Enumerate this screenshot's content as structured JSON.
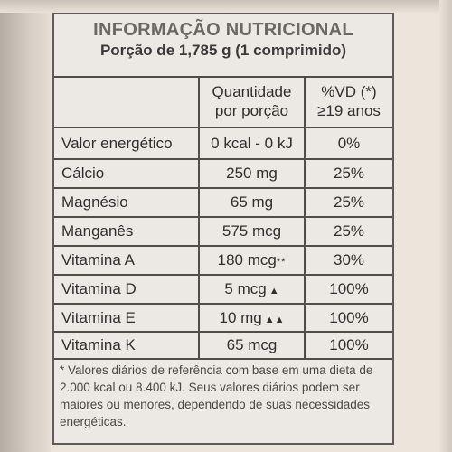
{
  "label": {
    "title": "INFORMAÇÃO NUTRICIONAL",
    "subtitle": "Porção de 1,785 g (1 comprimido)",
    "header": {
      "qty_line1": "Quantidade",
      "qty_line2": "por porção",
      "vd_line1": "%VD (*)",
      "vd_line2": "≥19 anos"
    },
    "rows": [
      {
        "name": "Valor energético",
        "qty": "0 kcal - 0 kJ",
        "mark": "",
        "vd": "0%"
      },
      {
        "name": "Cálcio",
        "qty": "250 mg",
        "mark": "",
        "vd": "25%"
      },
      {
        "name": "Magnésio",
        "qty": "65 mg",
        "mark": "",
        "vd": "25%"
      },
      {
        "name": "Manganês",
        "qty": "575 mcg",
        "mark": "",
        "vd": "25%"
      },
      {
        "name": "Vitamina A",
        "qty": "180 mcg",
        "mark": "**",
        "vd": "30%"
      },
      {
        "name": "Vitamina D",
        "qty": "5 mcg",
        "mark": "▲",
        "vd": "100%"
      },
      {
        "name": "Vitamina E",
        "qty": "10 mg",
        "mark": "▲▲",
        "vd": "100%"
      },
      {
        "name": "Vitamina K",
        "qty": "65 mcg",
        "mark": "",
        "vd": "100%"
      }
    ],
    "footnote": "* Valores diários de referência com base em uma dieta de 2.000 kcal ou 8.400 kJ. Seus valores diários podem ser maiores ou menores, dependendo de suas necessidades energéticas."
  }
}
